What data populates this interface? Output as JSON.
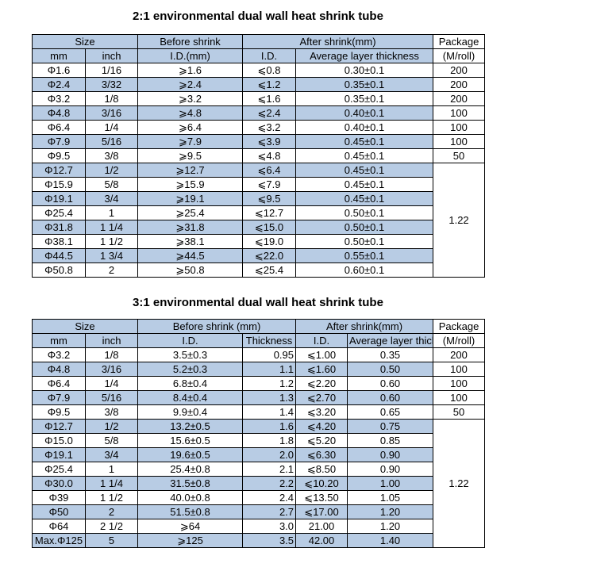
{
  "tables": [
    {
      "title": "2:1 environmental dual wall heat shrink tube",
      "header_top": [
        "Size",
        "Before shrink",
        "After shrink(mm)",
        "Package"
      ],
      "header_sub": [
        "mm",
        "inch",
        "I.D.(mm)",
        "I.D.",
        "Average layer thickness",
        "(M/roll)"
      ],
      "rows": [
        [
          "Φ1.6",
          "1/16",
          "⩾1.6",
          "⩽0.8",
          "0.30±0.1"
        ],
        [
          "Φ2.4",
          "3/32",
          "⩾2.4",
          "⩽1.2",
          "0.35±0.1"
        ],
        [
          "Φ3.2",
          "1/8",
          "⩾3.2",
          "⩽1.6",
          "0.35±0.1"
        ],
        [
          "Φ4.8",
          "3/16",
          "⩾4.8",
          "⩽2.4",
          "0.40±0.1"
        ],
        [
          "Φ6.4",
          "1/4",
          "⩾6.4",
          "⩽3.2",
          "0.40±0.1"
        ],
        [
          "Φ7.9",
          "5/16",
          "⩾7.9",
          "⩽3.9",
          "0.45±0.1"
        ],
        [
          "Φ9.5",
          "3/8",
          "⩾9.5",
          "⩽4.8",
          "0.45±0.1"
        ],
        [
          "Φ12.7",
          "1/2",
          "⩾12.7",
          "⩽6.4",
          "0.45±0.1"
        ],
        [
          "Φ15.9",
          "5/8",
          "⩾15.9",
          "⩽7.9",
          "0.45±0.1"
        ],
        [
          "Φ19.1",
          "3/4",
          "⩾19.1",
          "⩽9.5",
          "0.45±0.1"
        ],
        [
          "Φ25.4",
          "1",
          "⩾25.4",
          "⩽12.7",
          "0.50±0.1"
        ],
        [
          "Φ31.8",
          "1 1/4",
          "⩾31.8",
          "⩽15.0",
          "0.50±0.1"
        ],
        [
          "Φ38.1",
          "1 1/2",
          "⩾38.1",
          "⩽19.0",
          "0.50±0.1"
        ],
        [
          "Φ44.5",
          "1 3/4",
          "⩾44.5",
          "⩽22.0",
          "0.55±0.1"
        ],
        [
          "Φ50.8",
          "2",
          "⩾50.8",
          "⩽25.4",
          "0.60±0.1"
        ]
      ],
      "package": [
        "200",
        "200",
        "200",
        "100",
        "100",
        "100",
        "50"
      ],
      "package_merged": "1.22"
    },
    {
      "title": "3:1 environmental dual wall heat shrink tube",
      "header_top": [
        "Size",
        "Before shrink (mm)",
        "After shrink(mm)",
        "Package"
      ],
      "header_sub": [
        "mm",
        "inch",
        "I.D.",
        "Thickness",
        "I.D.",
        "Average layer thickness",
        "(M/roll)"
      ],
      "rows": [
        [
          "Φ3.2",
          "1/8",
          "3.5±0.3",
          "0.95",
          "⩽1.00",
          "0.35"
        ],
        [
          "Φ4.8",
          "3/16",
          "5.2±0.3",
          "1.1",
          "⩽1.60",
          "0.50"
        ],
        [
          "Φ6.4",
          "1/4",
          "6.8±0.4",
          "1.2",
          "⩽2.20",
          "0.60"
        ],
        [
          "Φ7.9",
          "5/16",
          "8.4±0.4",
          "1.3",
          "⩽2.70",
          "0.60"
        ],
        [
          "Φ9.5",
          "3/8",
          "9.9±0.4",
          "1.4",
          "⩽3.20",
          "0.65"
        ],
        [
          "Φ12.7",
          "1/2",
          "13.2±0.5",
          "1.6",
          "⩽4.20",
          "0.75"
        ],
        [
          "Φ15.0",
          "5/8",
          "15.6±0.5",
          "1.8",
          "⩽5.20",
          "0.85"
        ],
        [
          "Φ19.1",
          "3/4",
          "19.6±0.5",
          "2.0",
          "⩽6.30",
          "0.90"
        ],
        [
          "Φ25.4",
          "1",
          "25.4±0.8",
          "2.1",
          "⩽8.50",
          "0.90"
        ],
        [
          "Φ30.0",
          "1 1/4",
          "31.5±0.8",
          "2.2",
          "⩽10.20",
          "1.00"
        ],
        [
          "Φ39",
          "1 1/2",
          "40.0±0.8",
          "2.4",
          "⩽13.50",
          "1.05"
        ],
        [
          "Φ50",
          "2",
          "51.5±0.8",
          "2.7",
          "⩽17.00",
          "1.20"
        ],
        [
          "Φ64",
          "2 1/2",
          "⩾64",
          "3.0",
          "21.00",
          "1.20"
        ],
        [
          "Max.Φ125",
          "5",
          "⩾125",
          "3.5",
          "42.00",
          "1.40"
        ]
      ],
      "package": [
        "200",
        "100",
        "100",
        "100",
        "50"
      ],
      "package_merged": "1.22"
    }
  ]
}
